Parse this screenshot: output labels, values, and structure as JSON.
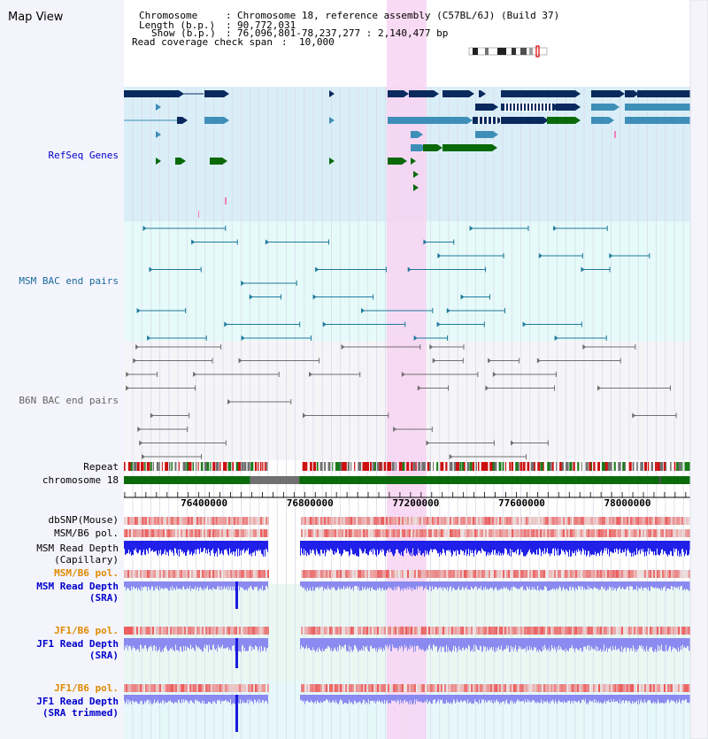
{
  "title": "Map View",
  "info": {
    "chromosome_label": "Chromosome",
    "chromosome_value": "Chromosome 18, reference assembly (C57BL/6J) (Build 37)",
    "length_label": "Length (b.p.)",
    "length_value": "90,772,031",
    "show_label": "Show (b.p.)",
    "show_value": "76,096,801-78,237,277 : 2,140,477 bp",
    "span_label": "Read coverage check span",
    "span_value": "10,000"
  },
  "tracks": {
    "refseq": "RefSeq Genes",
    "msm_bac": "MSM BAC end pairs",
    "b6n_bac": "B6N BAC end pairs",
    "repeat": "Repeat",
    "chromosome": "chromosome 18",
    "dbsnp": "dbSNP(Mouse)",
    "msm_pol": "MSM/B6 pol.",
    "msm_depth_cap_1": "MSM Read Depth",
    "msm_depth_cap_2": "(Capillary)",
    "msm_pol_sra": "MSM/B6 pol.",
    "msm_depth_sra_1": "MSM Read Depth",
    "msm_depth_sra_2": "(SRA)",
    "jf1_pol": "JF1/B6 pol.",
    "jf1_depth_1": "JF1 Read Depth",
    "jf1_depth_2": "(SRA)",
    "jf1_pol_trim": "JF1/B6 pol.",
    "jf1_trim_1": "JF1 Read Depth",
    "jf1_trim_2": "(SRA trimmed)"
  },
  "axis": {
    "ticks": [
      "76400000",
      "76800000",
      "77200000",
      "77600000",
      "78000000"
    ],
    "tick_values": [
      76400000,
      76800000,
      77200000,
      77600000,
      78000000
    ],
    "range": [
      76096801,
      78237277
    ]
  },
  "highlight_range": [
    77090000,
    77240000
  ],
  "gap_range": [
    76640000,
    76760000
  ],
  "colors": {
    "refseq_bg": "#daeef8",
    "msm_bg": "#e6fafa",
    "b6n_bg": "#f4f4f8",
    "highlight": "#f8d8f4",
    "gene_dark": "#0a2a5e",
    "gene_mid": "#3e8fb8",
    "gene_green": "#0a6a0a",
    "msm_line": "#1e7a9a",
    "b6n_line": "#707070",
    "depth_blue": "#2020e8",
    "depth_lilac": "#8a8af0",
    "pol_red": "#e84040",
    "label_blue": "#0000cc",
    "label_orange": "#e08a00",
    "chrom_green": "#0b6b0b",
    "left_panel": "#f3f3fb"
  }
}
